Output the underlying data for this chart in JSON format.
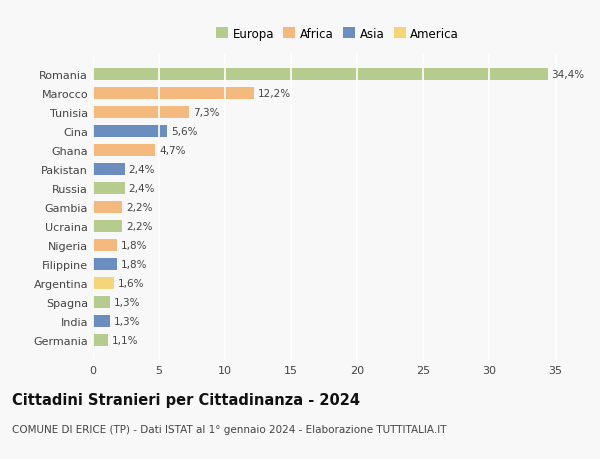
{
  "countries": [
    "Romania",
    "Marocco",
    "Tunisia",
    "Cina",
    "Ghana",
    "Pakistan",
    "Russia",
    "Gambia",
    "Ucraina",
    "Nigeria",
    "Filippine",
    "Argentina",
    "Spagna",
    "India",
    "Germania"
  ],
  "values": [
    34.4,
    12.2,
    7.3,
    5.6,
    4.7,
    2.4,
    2.4,
    2.2,
    2.2,
    1.8,
    1.8,
    1.6,
    1.3,
    1.3,
    1.1
  ],
  "labels": [
    "34,4%",
    "12,2%",
    "7,3%",
    "5,6%",
    "4,7%",
    "2,4%",
    "2,4%",
    "2,2%",
    "2,2%",
    "1,8%",
    "1,8%",
    "1,6%",
    "1,3%",
    "1,3%",
    "1,1%"
  ],
  "continents": [
    "Europa",
    "Africa",
    "Africa",
    "Asia",
    "Africa",
    "Asia",
    "Europa",
    "Africa",
    "Europa",
    "Africa",
    "Asia",
    "America",
    "Europa",
    "Asia",
    "Europa"
  ],
  "continent_colors": {
    "Europa": "#b5cc8e",
    "Africa": "#f4b97f",
    "Asia": "#6b8ebf",
    "America": "#f5d57a"
  },
  "legend_order": [
    "Europa",
    "Africa",
    "Asia",
    "America"
  ],
  "xlim": [
    0,
    37
  ],
  "xticks": [
    0,
    5,
    10,
    15,
    20,
    25,
    30,
    35
  ],
  "title": "Cittadini Stranieri per Cittadinanza - 2024",
  "subtitle": "COMUNE DI ERICE (TP) - Dati ISTAT al 1° gennaio 2024 - Elaborazione TUTTITALIA.IT",
  "background_color": "#f8f8f8",
  "grid_color": "#ffffff",
  "bar_height": 0.65,
  "label_fontsize": 7.5,
  "ytick_fontsize": 8.0,
  "xtick_fontsize": 8.0,
  "title_fontsize": 10.5,
  "subtitle_fontsize": 7.5,
  "legend_fontsize": 8.5
}
